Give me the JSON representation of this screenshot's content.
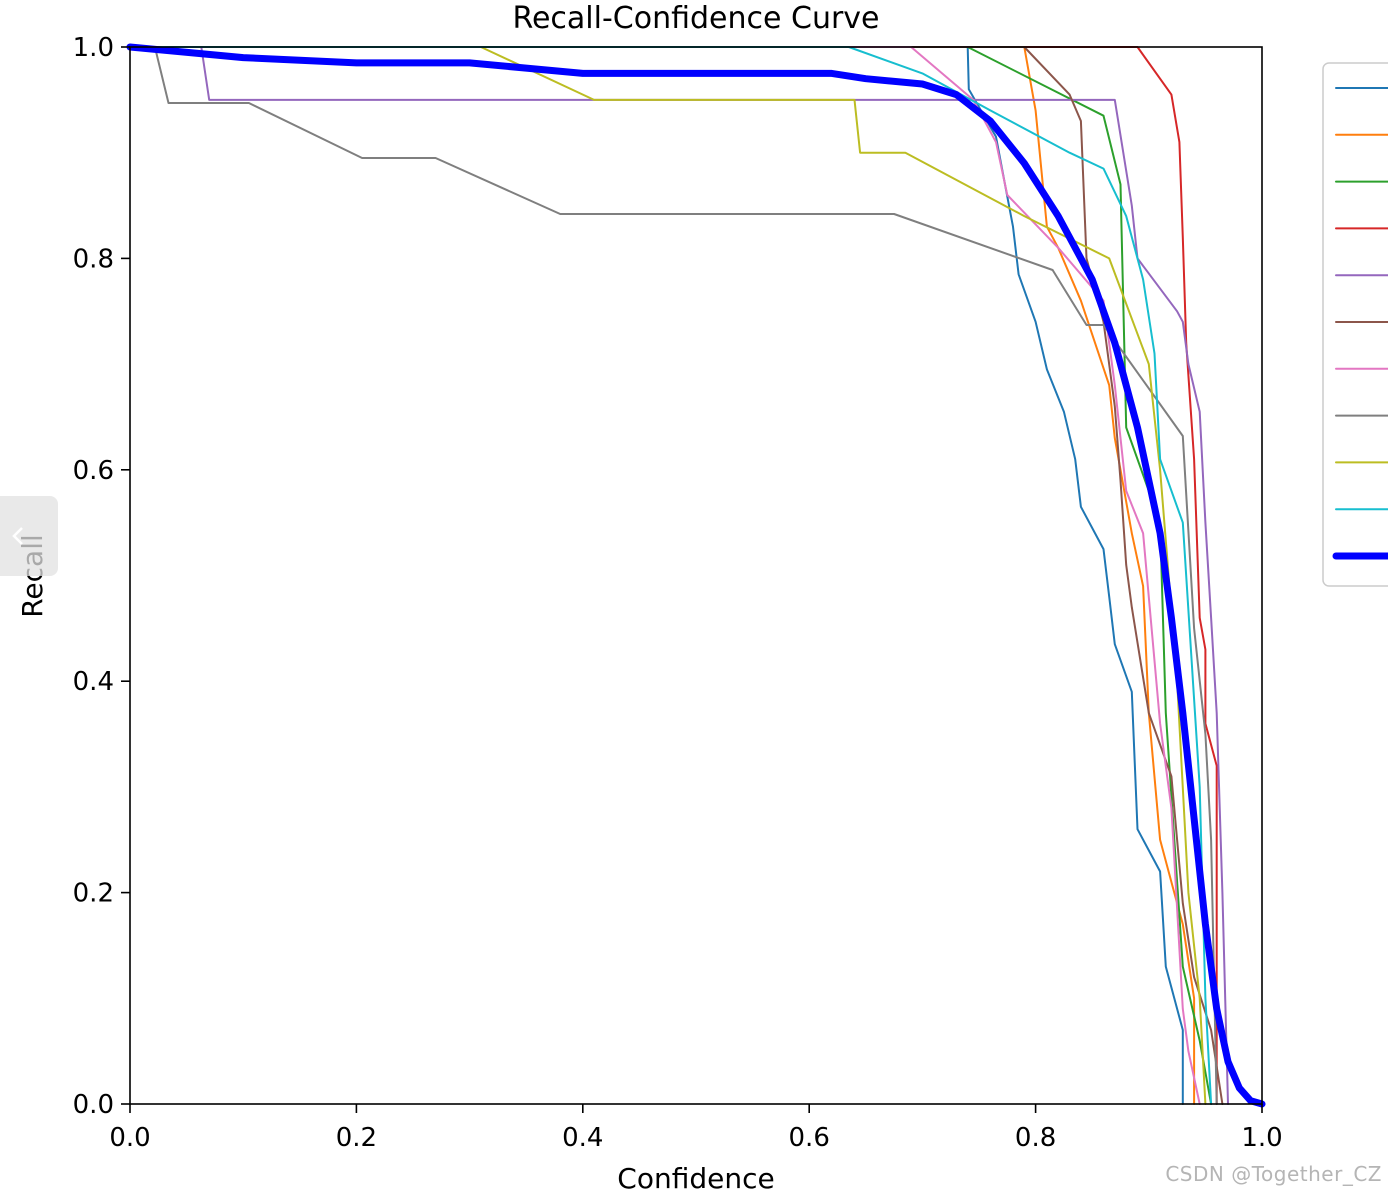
{
  "chart_data": {
    "type": "line",
    "title": "Recall-Confidence Curve",
    "xlabel": "Confidence",
    "ylabel": "Recall",
    "xlim": [
      0.0,
      1.0
    ],
    "ylim": [
      0.0,
      1.0
    ],
    "xticks": [
      "0.0",
      "0.2",
      "0.4",
      "0.6",
      "0.8",
      "1.0"
    ],
    "yticks": [
      "0.0",
      "0.2",
      "0.4",
      "0.6",
      "0.8",
      "1.0"
    ],
    "grid": false,
    "legend_position": "right, outside (clipped)",
    "series": [
      {
        "color": "#1f77b4",
        "points": [
          [
            0,
            1
          ],
          [
            0.74,
            1
          ],
          [
            0.741,
            0.96
          ],
          [
            0.765,
            0.915
          ],
          [
            0.78,
            0.83
          ],
          [
            0.785,
            0.785
          ],
          [
            0.8,
            0.74
          ],
          [
            0.81,
            0.695
          ],
          [
            0.825,
            0.655
          ],
          [
            0.835,
            0.61
          ],
          [
            0.84,
            0.565
          ],
          [
            0.86,
            0.525
          ],
          [
            0.865,
            0.48
          ],
          [
            0.87,
            0.435
          ],
          [
            0.885,
            0.39
          ],
          [
            0.89,
            0.26
          ],
          [
            0.91,
            0.22
          ],
          [
            0.915,
            0.13
          ],
          [
            0.93,
            0.07
          ],
          [
            0.93,
            0
          ]
        ]
      },
      {
        "color": "#ff7f0e",
        "points": [
          [
            0,
            1
          ],
          [
            0.79,
            1
          ],
          [
            0.8,
            0.94
          ],
          [
            0.81,
            0.83
          ],
          [
            0.82,
            0.81
          ],
          [
            0.84,
            0.76
          ],
          [
            0.865,
            0.68
          ],
          [
            0.87,
            0.63
          ],
          [
            0.875,
            0.6
          ],
          [
            0.885,
            0.54
          ],
          [
            0.895,
            0.49
          ],
          [
            0.9,
            0.37
          ],
          [
            0.91,
            0.25
          ],
          [
            0.92,
            0.21
          ],
          [
            0.93,
            0.17
          ],
          [
            0.94,
            0.1
          ],
          [
            0.94,
            0
          ]
        ]
      },
      {
        "color": "#2ca02c",
        "points": [
          [
            0,
            1
          ],
          [
            0.74,
            1
          ],
          [
            0.86,
            0.935
          ],
          [
            0.875,
            0.87
          ],
          [
            0.88,
            0.64
          ],
          [
            0.91,
            0.55
          ],
          [
            0.915,
            0.37
          ],
          [
            0.93,
            0.13
          ],
          [
            0.945,
            0.06
          ],
          [
            0.955,
            0
          ]
        ]
      },
      {
        "color": "#d62728",
        "points": [
          [
            0,
            1
          ],
          [
            0.89,
            1
          ],
          [
            0.92,
            0.955
          ],
          [
            0.927,
            0.91
          ],
          [
            0.93,
            0.82
          ],
          [
            0.933,
            0.72
          ],
          [
            0.94,
            0.61
          ],
          [
            0.945,
            0.46
          ],
          [
            0.95,
            0.43
          ],
          [
            0.95,
            0.36
          ],
          [
            0.96,
            0.32
          ],
          [
            0.96,
            0
          ]
        ]
      },
      {
        "color": "#9467bd",
        "points": [
          [
            0,
            1
          ],
          [
            0.063,
            1
          ],
          [
            0.07,
            0.95
          ],
          [
            0.87,
            0.95
          ],
          [
            0.885,
            0.85
          ],
          [
            0.89,
            0.8
          ],
          [
            0.925,
            0.75
          ],
          [
            0.93,
            0.74
          ],
          [
            0.935,
            0.7
          ],
          [
            0.945,
            0.655
          ],
          [
            0.95,
            0.55
          ],
          [
            0.955,
            0.46
          ],
          [
            0.96,
            0.37
          ],
          [
            0.965,
            0.2
          ],
          [
            0.97,
            0
          ]
        ]
      },
      {
        "color": "#8c564b",
        "points": [
          [
            0,
            1
          ],
          [
            0.79,
            1
          ],
          [
            0.83,
            0.955
          ],
          [
            0.84,
            0.93
          ],
          [
            0.845,
            0.8
          ],
          [
            0.86,
            0.74
          ],
          [
            0.87,
            0.66
          ],
          [
            0.875,
            0.59
          ],
          [
            0.88,
            0.51
          ],
          [
            0.885,
            0.47
          ],
          [
            0.9,
            0.37
          ],
          [
            0.92,
            0.31
          ],
          [
            0.93,
            0.19
          ],
          [
            0.94,
            0.12
          ],
          [
            0.955,
            0.07
          ],
          [
            0.965,
            0
          ]
        ]
      },
      {
        "color": "#e377c2",
        "points": [
          [
            0,
            1
          ],
          [
            0.69,
            1
          ],
          [
            0.745,
            0.95
          ],
          [
            0.765,
            0.91
          ],
          [
            0.775,
            0.86
          ],
          [
            0.82,
            0.81
          ],
          [
            0.86,
            0.76
          ],
          [
            0.87,
            0.68
          ],
          [
            0.88,
            0.58
          ],
          [
            0.895,
            0.54
          ],
          [
            0.91,
            0.36
          ],
          [
            0.92,
            0.28
          ],
          [
            0.93,
            0.09
          ],
          [
            0.935,
            0.05
          ],
          [
            0.945,
            0
          ]
        ]
      },
      {
        "color": "#7f7f7f",
        "points": [
          [
            0,
            1
          ],
          [
            0.022,
            1
          ],
          [
            0.034,
            0.947
          ],
          [
            0.105,
            0.947
          ],
          [
            0.205,
            0.895
          ],
          [
            0.27,
            0.895
          ],
          [
            0.38,
            0.842
          ],
          [
            0.675,
            0.842
          ],
          [
            0.815,
            0.789
          ],
          [
            0.845,
            0.737
          ],
          [
            0.86,
            0.737
          ],
          [
            0.93,
            0.632
          ],
          [
            0.94,
            0.45
          ],
          [
            0.95,
            0.35
          ],
          [
            0.955,
            0.25
          ],
          [
            0.96,
            0
          ]
        ]
      },
      {
        "color": "#bcbd22",
        "points": [
          [
            0,
            1
          ],
          [
            0.31,
            1
          ],
          [
            0.41,
            0.95
          ],
          [
            0.64,
            0.95
          ],
          [
            0.645,
            0.9
          ],
          [
            0.685,
            0.9
          ],
          [
            0.79,
            0.84
          ],
          [
            0.865,
            0.8
          ],
          [
            0.9,
            0.7
          ],
          [
            0.91,
            0.6
          ],
          [
            0.925,
            0.4
          ],
          [
            0.935,
            0.2
          ],
          [
            0.945,
            0.1
          ],
          [
            0.95,
            0
          ]
        ]
      },
      {
        "color": "#17becf",
        "points": [
          [
            0,
            1
          ],
          [
            0.635,
            1
          ],
          [
            0.7,
            0.975
          ],
          [
            0.76,
            0.94
          ],
          [
            0.83,
            0.9
          ],
          [
            0.86,
            0.885
          ],
          [
            0.88,
            0.84
          ],
          [
            0.895,
            0.78
          ],
          [
            0.905,
            0.71
          ],
          [
            0.91,
            0.61
          ],
          [
            0.93,
            0.55
          ],
          [
            0.945,
            0.3
          ],
          [
            0.95,
            0.1
          ],
          [
            0.955,
            0
          ]
        ]
      },
      {
        "color": "#0000ff",
        "thick": true,
        "points": [
          [
            0,
            1
          ],
          [
            0.1,
            0.99
          ],
          [
            0.2,
            0.985
          ],
          [
            0.3,
            0.985
          ],
          [
            0.35,
            0.98
          ],
          [
            0.4,
            0.975
          ],
          [
            0.5,
            0.975
          ],
          [
            0.6,
            0.975
          ],
          [
            0.62,
            0.975
          ],
          [
            0.65,
            0.97
          ],
          [
            0.7,
            0.965
          ],
          [
            0.73,
            0.955
          ],
          [
            0.76,
            0.93
          ],
          [
            0.79,
            0.89
          ],
          [
            0.82,
            0.84
          ],
          [
            0.85,
            0.78
          ],
          [
            0.87,
            0.72
          ],
          [
            0.89,
            0.64
          ],
          [
            0.91,
            0.54
          ],
          [
            0.92,
            0.46
          ],
          [
            0.93,
            0.37
          ],
          [
            0.94,
            0.27
          ],
          [
            0.95,
            0.17
          ],
          [
            0.96,
            0.09
          ],
          [
            0.97,
            0.04
          ],
          [
            0.98,
            0.015
          ],
          [
            0.99,
            0.003
          ],
          [
            1.0,
            0
          ]
        ]
      }
    ]
  },
  "watermark": "CSDN @Together_CZ",
  "nav": {
    "collapse_icon": "chevron-left-icon"
  }
}
